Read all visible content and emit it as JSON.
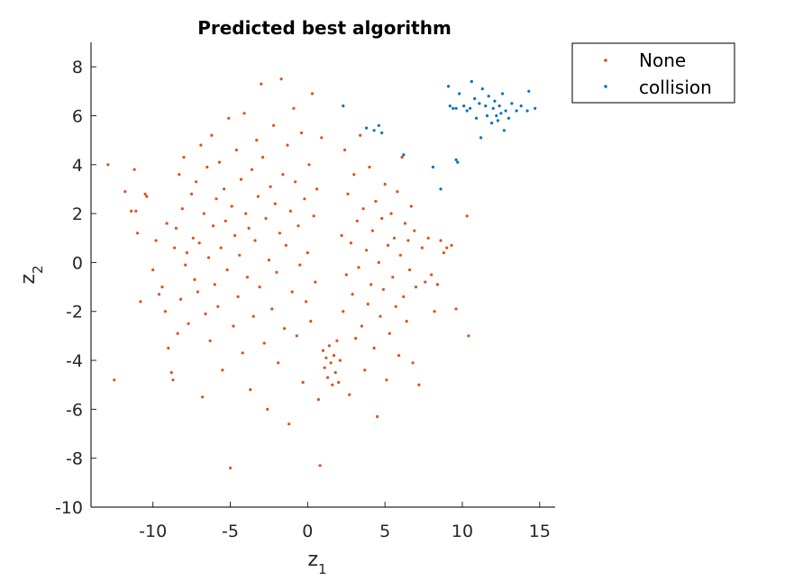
{
  "chart_data": {
    "type": "scatter",
    "title": "Predicted best algorithm",
    "xlabel": {
      "base": "z",
      "sub": "1"
    },
    "ylabel": {
      "base": "z",
      "sub": "2"
    },
    "xlim": [
      -14,
      16
    ],
    "ylim": [
      -10,
      9
    ],
    "xticks": [
      -10,
      -5,
      0,
      5,
      10,
      15
    ],
    "xtick_labels": [
      "-10",
      "-5",
      "0",
      "5",
      "10",
      "15"
    ],
    "yticks": [
      -10,
      -8,
      -6,
      -4,
      -2,
      0,
      2,
      4,
      6,
      8
    ],
    "ytick_labels": [
      "-10",
      "-8",
      "-6",
      "-4",
      "-2",
      "0",
      "2",
      "4",
      "6",
      "8"
    ],
    "grid": false,
    "legend_position": "outside-top-right",
    "series": [
      {
        "name": "None",
        "color": "#d95319",
        "points": [
          [
            -12.9,
            4.0
          ],
          [
            -12.5,
            -4.8
          ],
          [
            -11.8,
            2.9
          ],
          [
            -11.4,
            2.1
          ],
          [
            -11.2,
            3.8
          ],
          [
            -11.1,
            2.1
          ],
          [
            -11.0,
            1.2
          ],
          [
            -10.8,
            -1.6
          ],
          [
            -10.5,
            2.8
          ],
          [
            -10.4,
            2.7
          ],
          [
            -10.0,
            -0.3
          ],
          [
            -9.8,
            0.9
          ],
          [
            -9.6,
            -1.3
          ],
          [
            -9.4,
            -1.0
          ],
          [
            -9.2,
            -2.0
          ],
          [
            -9.1,
            1.6
          ],
          [
            -9.0,
            -3.5
          ],
          [
            -8.8,
            -4.5
          ],
          [
            -8.7,
            -4.8
          ],
          [
            -8.6,
            0.6
          ],
          [
            -8.5,
            1.4
          ],
          [
            -8.4,
            -2.9
          ],
          [
            -8.3,
            3.6
          ],
          [
            -8.2,
            -1.5
          ],
          [
            -8.1,
            2.2
          ],
          [
            -8.0,
            4.3
          ],
          [
            -7.9,
            -0.1
          ],
          [
            -7.8,
            0.4
          ],
          [
            -7.7,
            -2.5
          ],
          [
            -7.5,
            2.8
          ],
          [
            -7.4,
            1.0
          ],
          [
            -7.3,
            -0.7
          ],
          [
            -7.2,
            3.3
          ],
          [
            -7.1,
            -1.2
          ],
          [
            -7.0,
            0.8
          ],
          [
            -6.9,
            4.8
          ],
          [
            -6.8,
            -5.5
          ],
          [
            -6.7,
            2.0
          ],
          [
            -6.6,
            -2.1
          ],
          [
            -6.5,
            3.9
          ],
          [
            -6.4,
            0.2
          ],
          [
            -6.3,
            -3.2
          ],
          [
            -6.2,
            5.2
          ],
          [
            -6.1,
            1.5
          ],
          [
            -6.0,
            -0.9
          ],
          [
            -5.9,
            2.6
          ],
          [
            -5.8,
            -1.8
          ],
          [
            -5.7,
            4.1
          ],
          [
            -5.6,
            0.6
          ],
          [
            -5.5,
            -4.4
          ],
          [
            -5.4,
            3.0
          ],
          [
            -5.3,
            1.7
          ],
          [
            -5.2,
            -0.3
          ],
          [
            -5.1,
            5.9
          ],
          [
            -5.0,
            -8.4
          ],
          [
            -4.9,
            2.3
          ],
          [
            -4.8,
            -2.6
          ],
          [
            -4.7,
            1.1
          ],
          [
            -4.6,
            4.6
          ],
          [
            -4.5,
            -1.4
          ],
          [
            -4.4,
            0.3
          ],
          [
            -4.3,
            3.4
          ],
          [
            -4.2,
            -3.7
          ],
          [
            -4.1,
            6.1
          ],
          [
            -4.0,
            2.0
          ],
          [
            -3.9,
            -0.6
          ],
          [
            -3.8,
            1.4
          ],
          [
            -3.7,
            -5.2
          ],
          [
            -3.6,
            3.8
          ],
          [
            -3.5,
            -2.2
          ],
          [
            -3.4,
            0.9
          ],
          [
            -3.3,
            5.0
          ],
          [
            -3.2,
            2.7
          ],
          [
            -3.1,
            -1.0
          ],
          [
            -3.0,
            7.3
          ],
          [
            -2.9,
            4.3
          ],
          [
            -2.8,
            -3.3
          ],
          [
            -2.7,
            1.8
          ],
          [
            -2.6,
            -6.0
          ],
          [
            -2.5,
            0.1
          ],
          [
            -2.4,
            3.1
          ],
          [
            -2.3,
            -1.9
          ],
          [
            -2.2,
            5.6
          ],
          [
            -2.1,
            2.4
          ],
          [
            -2.0,
            -0.4
          ],
          [
            -1.9,
            -4.1
          ],
          [
            -1.8,
            1.2
          ],
          [
            -1.7,
            7.5
          ],
          [
            -1.6,
            3.6
          ],
          [
            -1.5,
            -2.7
          ],
          [
            -1.4,
            0.7
          ],
          [
            -1.3,
            4.8
          ],
          [
            -1.2,
            -6.6
          ],
          [
            -1.1,
            2.1
          ],
          [
            -1.0,
            -1.2
          ],
          [
            -0.9,
            6.3
          ],
          [
            -0.8,
            3.3
          ],
          [
            -0.7,
            -3.0
          ],
          [
            -0.6,
            1.5
          ],
          [
            -0.5,
            -0.1
          ],
          [
            -0.4,
            5.3
          ],
          [
            -0.3,
            -4.9
          ],
          [
            -0.2,
            2.6
          ],
          [
            -0.1,
            -1.6
          ],
          [
            0.0,
            0.4
          ],
          [
            0.1,
            4.0
          ],
          [
            0.2,
            -2.4
          ],
          [
            0.3,
            6.9
          ],
          [
            0.4,
            1.9
          ],
          [
            0.5,
            -0.8
          ],
          [
            0.6,
            3.0
          ],
          [
            0.7,
            -5.6
          ],
          [
            0.8,
            -8.3
          ],
          [
            0.9,
            5.1
          ],
          [
            1.0,
            -3.6
          ],
          [
            1.1,
            -4.3
          ],
          [
            1.2,
            -3.9
          ],
          [
            1.3,
            -4.7
          ],
          [
            1.4,
            -3.4
          ],
          [
            1.5,
            -4.1
          ],
          [
            1.6,
            -5.0
          ],
          [
            1.7,
            -3.8
          ],
          [
            1.8,
            -4.5
          ],
          [
            1.9,
            -3.2
          ],
          [
            2.0,
            -4.9
          ],
          [
            2.1,
            -4.0
          ],
          [
            2.2,
            1.1
          ],
          [
            2.3,
            -2.0
          ],
          [
            2.4,
            4.6
          ],
          [
            2.5,
            -0.5
          ],
          [
            2.6,
            2.8
          ],
          [
            2.7,
            -5.4
          ],
          [
            2.8,
            0.8
          ],
          [
            2.9,
            -1.3
          ],
          [
            3.0,
            3.6
          ],
          [
            3.1,
            -3.1
          ],
          [
            3.2,
            1.7
          ],
          [
            3.3,
            -0.2
          ],
          [
            3.4,
            5.2
          ],
          [
            3.5,
            -2.6
          ],
          [
            3.6,
            2.2
          ],
          [
            3.7,
            -4.4
          ],
          [
            3.8,
            0.5
          ],
          [
            3.9,
            -1.7
          ],
          [
            4.0,
            3.9
          ],
          [
            4.1,
            -0.9
          ],
          [
            4.2,
            1.3
          ],
          [
            4.3,
            -3.5
          ],
          [
            4.4,
            2.5
          ],
          [
            4.5,
            -6.3
          ],
          [
            4.6,
            0.0
          ],
          [
            4.7,
            -2.2
          ],
          [
            4.8,
            1.8
          ],
          [
            4.9,
            -1.1
          ],
          [
            5.0,
            3.2
          ],
          [
            5.1,
            -4.8
          ],
          [
            5.2,
            0.7
          ],
          [
            5.3,
            -2.9
          ],
          [
            5.4,
            2.0
          ],
          [
            5.5,
            -0.6
          ],
          [
            5.6,
            1.0
          ],
          [
            5.7,
            -1.8
          ],
          [
            5.8,
            2.9
          ],
          [
            5.9,
            -3.8
          ],
          [
            6.0,
            0.3
          ],
          [
            6.1,
            4.3
          ],
          [
            6.2,
            -1.4
          ],
          [
            6.3,
            1.6
          ],
          [
            6.4,
            -2.4
          ],
          [
            6.5,
            0.9
          ],
          [
            6.6,
            -0.3
          ],
          [
            6.7,
            2.3
          ],
          [
            6.8,
            -4.1
          ],
          [
            6.9,
            1.3
          ],
          [
            7.0,
            -1.0
          ],
          [
            7.2,
            -5.0
          ],
          [
            7.4,
            0.6
          ],
          [
            7.6,
            -0.8
          ],
          [
            7.8,
            1.0
          ],
          [
            8.0,
            -0.5
          ],
          [
            8.2,
            -2.0
          ],
          [
            8.4,
            -0.9
          ],
          [
            8.6,
            0.9
          ],
          [
            8.8,
            0.4
          ],
          [
            9.0,
            0.6
          ],
          [
            9.3,
            0.7
          ],
          [
            9.6,
            -1.9
          ],
          [
            10.3,
            1.9
          ],
          [
            10.4,
            -3.0
          ]
        ]
      },
      {
        "name": "collision",
        "color": "#0072bd",
        "points": [
          [
            2.3,
            6.4
          ],
          [
            3.8,
            5.5
          ],
          [
            4.3,
            5.4
          ],
          [
            4.6,
            5.6
          ],
          [
            4.8,
            5.3
          ],
          [
            6.2,
            4.4
          ],
          [
            8.1,
            3.9
          ],
          [
            8.6,
            3.0
          ],
          [
            9.1,
            7.2
          ],
          [
            9.2,
            6.4
          ],
          [
            9.4,
            6.3
          ],
          [
            9.6,
            6.3
          ],
          [
            9.6,
            4.2
          ],
          [
            9.7,
            4.1
          ],
          [
            9.8,
            6.9
          ],
          [
            10.1,
            6.4
          ],
          [
            10.3,
            6.2
          ],
          [
            10.5,
            6.3
          ],
          [
            10.6,
            7.4
          ],
          [
            10.8,
            6.7
          ],
          [
            10.9,
            5.9
          ],
          [
            11.1,
            6.5
          ],
          [
            11.2,
            5.1
          ],
          [
            11.3,
            7.1
          ],
          [
            11.5,
            6.4
          ],
          [
            11.6,
            6.0
          ],
          [
            11.7,
            6.8
          ],
          [
            11.9,
            5.7
          ],
          [
            12.0,
            6.3
          ],
          [
            12.1,
            6.6
          ],
          [
            12.2,
            6.0
          ],
          [
            12.3,
            5.8
          ],
          [
            12.4,
            6.4
          ],
          [
            12.5,
            6.1
          ],
          [
            12.6,
            6.9
          ],
          [
            12.7,
            5.4
          ],
          [
            12.8,
            6.2
          ],
          [
            13.0,
            5.9
          ],
          [
            13.2,
            6.5
          ],
          [
            13.5,
            6.2
          ],
          [
            13.8,
            6.4
          ],
          [
            14.2,
            6.2
          ],
          [
            14.3,
            7.0
          ],
          [
            14.7,
            6.3
          ]
        ]
      }
    ]
  }
}
